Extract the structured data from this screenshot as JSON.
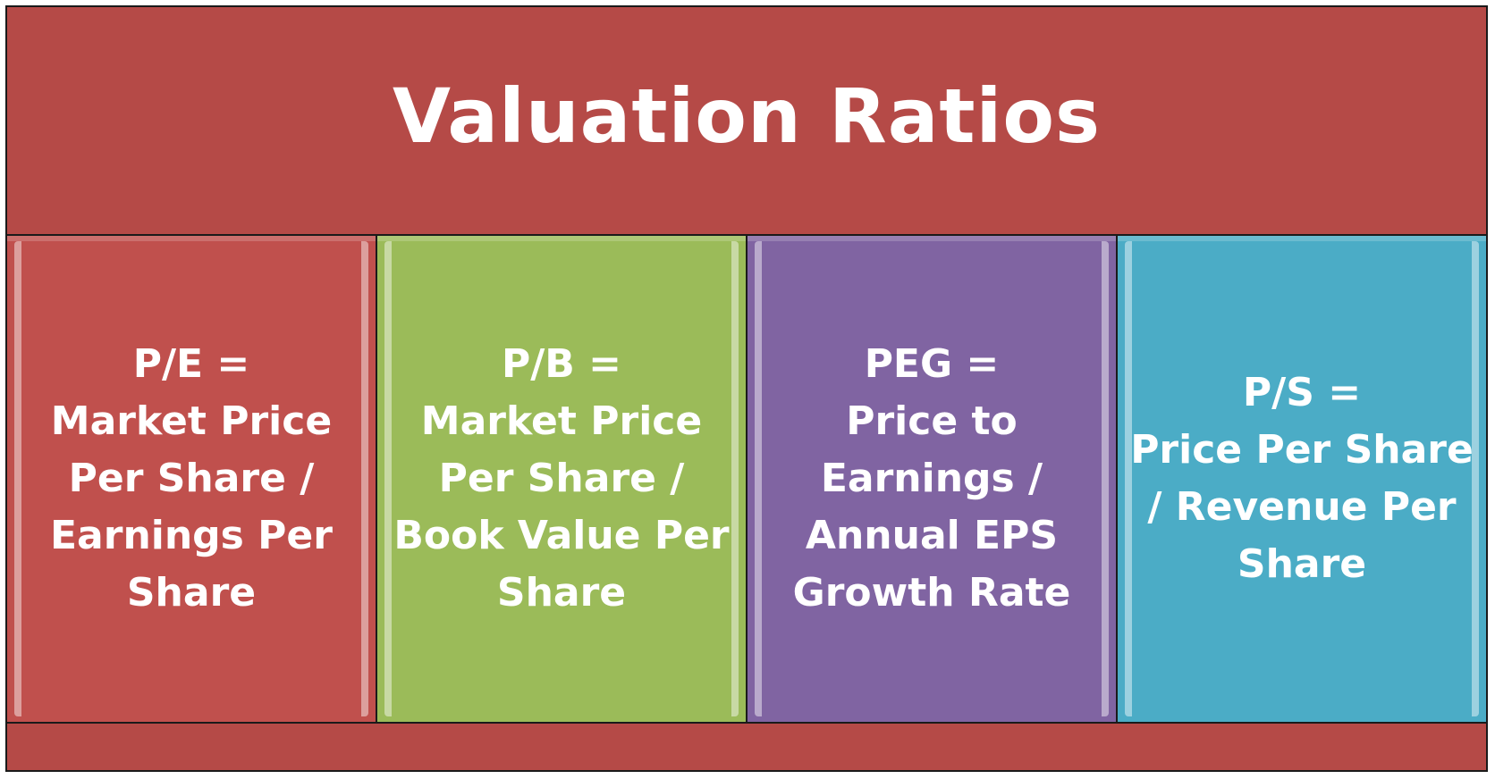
{
  "title": "Valuation Ratios",
  "boxes": [
    {
      "text": "P/E =\nMarket Price\nPer Share /\nEarnings Per\nShare",
      "color": "#c0504d"
    },
    {
      "text": "P/B =\nMarket Price\nPer Share /\nBook Value Per\nShare",
      "color": "#9bbb59"
    },
    {
      "text": "PEG =\nPrice to\nEarnings /\nAnnual EPS\nGrowth Rate",
      "color": "#8064a2"
    },
    {
      "text": "P/S =\nPrice Per Share\n/ Revenue Per\nShare",
      "color": "#4bacc6"
    }
  ],
  "colors": {
    "frame": "#b54a47",
    "text": "#ffffff",
    "border": "#1a1a1a"
  }
}
